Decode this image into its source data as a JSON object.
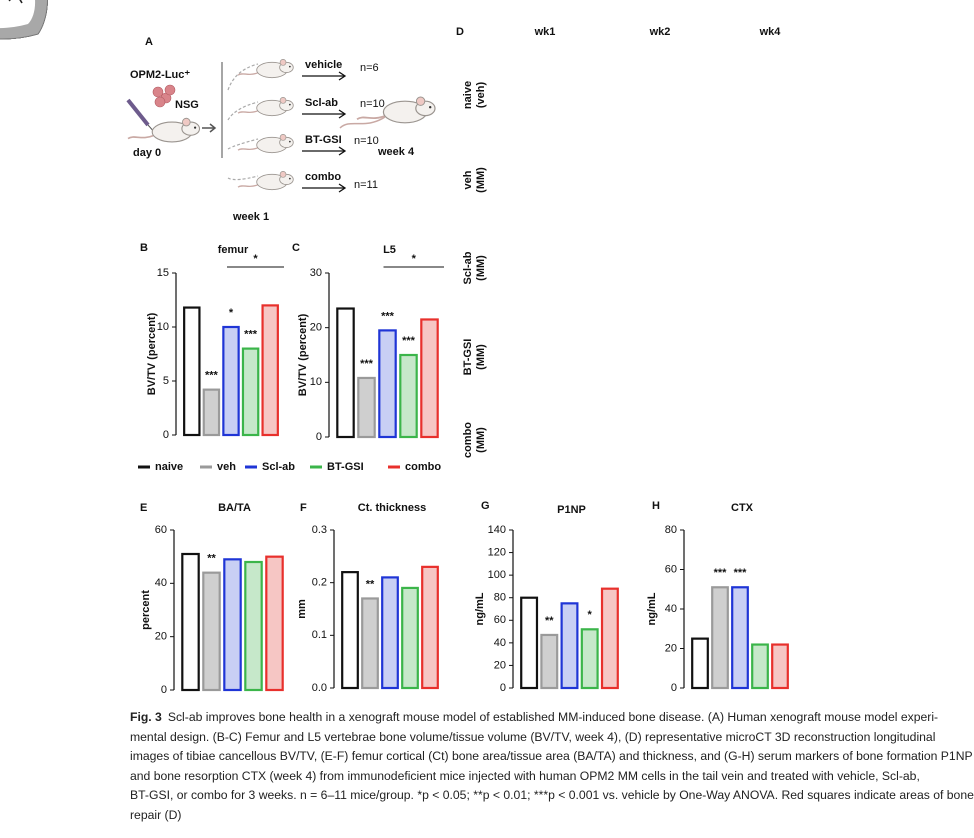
{
  "panel_a": {
    "letter": "A",
    "cell_line": "OPM2-Luc⁺",
    "host": "NSG",
    "start": "day 0",
    "treat_start": "week 1",
    "end": "week 4",
    "groups": [
      {
        "name": "vehicle",
        "color": "#8c8c8c",
        "n": "n=6"
      },
      {
        "name": "Scl-ab",
        "color": "#1f35d6",
        "n": "n=10"
      },
      {
        "name": "BT-GSI",
        "color": "#3bb54a",
        "n": "n=10"
      },
      {
        "name": "combo",
        "color": "#e8302c",
        "n": "n=11"
      }
    ]
  },
  "panel_d": {
    "letter": "D",
    "columns": [
      "wk1",
      "wk2",
      "wk4"
    ],
    "rows": [
      [
        "naive",
        "(veh)"
      ],
      [
        "veh",
        "(MM)"
      ],
      [
        "Scl-ab",
        "(MM)"
      ],
      [
        "BT-GSI",
        "(MM)"
      ],
      [
        "combo",
        "(MM)"
      ]
    ]
  },
  "legend": {
    "names": [
      "naive",
      "veh",
      "Scl-ab",
      "BT-GSI",
      "combo"
    ],
    "colors": [
      "#111111",
      "#9a9a9a",
      "#1f35d6",
      "#3bb54a",
      "#e8302c"
    ],
    "bar_fills": [
      "#ffffff",
      "#cfcfcf",
      "#c8cff4",
      "#c6e8ca",
      "#f6c6c4"
    ]
  },
  "chart_data": [
    {
      "type": "bar",
      "panel": "B",
      "title": "femur",
      "y_label": "BV/TV (percent)",
      "values": [
        11.8,
        4.2,
        10,
        8,
        12
      ],
      "significance": [
        null,
        "***",
        "*",
        "***",
        null
      ],
      "bracket_label": "*",
      "ylim": [
        0,
        15
      ],
      "yticks": [
        0,
        5,
        10,
        15
      ]
    },
    {
      "type": "bar",
      "panel": "C",
      "title": "L5",
      "y_label": "BV/TV (percent)",
      "values": [
        23.5,
        10.8,
        19.5,
        15,
        21.5
      ],
      "significance": [
        null,
        "***",
        "***",
        "***",
        null
      ],
      "bracket_label": "*",
      "ylim": [
        0,
        30
      ],
      "yticks": [
        0,
        10,
        20,
        30
      ]
    },
    {
      "type": "bar",
      "panel": "E",
      "title": "BA/TA",
      "y_label": "percent",
      "values": [
        51,
        44,
        49,
        48,
        50
      ],
      "significance": [
        null,
        "**",
        null,
        null,
        null
      ],
      "ylim": [
        0,
        60
      ],
      "yticks": [
        0,
        20,
        40,
        60
      ]
    },
    {
      "type": "bar",
      "panel": "F",
      "title": "Ct. thickness",
      "y_label": "mm",
      "values": [
        0.22,
        0.17,
        0.21,
        0.19,
        0.23
      ],
      "significance": [
        null,
        "**",
        null,
        null,
        null
      ],
      "ylim": [
        0,
        0.3
      ],
      "yticks": [
        {
          "value": 0,
          "label": "0.0"
        },
        0.1,
        0.2,
        0.3
      ]
    },
    {
      "type": "bar",
      "panel": "G",
      "title": "P1NP",
      "y_label": "ng/mL",
      "values": [
        80,
        47,
        75,
        52,
        88
      ],
      "significance": [
        null,
        "**",
        null,
        "*",
        null
      ],
      "ylim": [
        0,
        140
      ],
      "yticks": [
        0,
        20,
        40,
        60,
        80,
        100,
        120,
        140
      ]
    },
    {
      "type": "bar",
      "panel": "H",
      "title": "CTX",
      "y_label": "ng/mL",
      "values": [
        25,
        51,
        51,
        22,
        22
      ],
      "significance": [
        null,
        "***",
        "***",
        null,
        null
      ],
      "ylim": [
        0,
        80
      ],
      "yticks": [
        0,
        20,
        40,
        60,
        80
      ]
    }
  ],
  "caption": {
    "label": "Fig. 3",
    "lines": [
      "Scl-ab improves bone health in a xenograft mouse model of established MM-induced bone disease. (A) Human xenograft mouse model experi-",
      "mental design. (B-C) Femur and L5 vertebrae bone volume/tissue volume (BV/TV, week 4), (D) representative microCT 3D reconstruction longitudinal",
      "images of tibiae cancellous BV/TV, (E-F) femur cortical (Ct) bone area/tissue area (BA/TA) and thickness, and (G-H) serum markers of bone formation P1NP",
      "and bone resorption CTX (week 4) from immunodeficient mice injected with human OPM2 MM cells in the tail vein and treated with vehicle, Scl-ab,",
      "BT-GSI, or combo for 3 weeks. n = 6–11 mice/group. *p < 0.05; **p < 0.01; ***p < 0.001 vs. vehicle by One-Way ANOVA. Red squares indicate areas of bone",
      "repair (D)"
    ]
  }
}
